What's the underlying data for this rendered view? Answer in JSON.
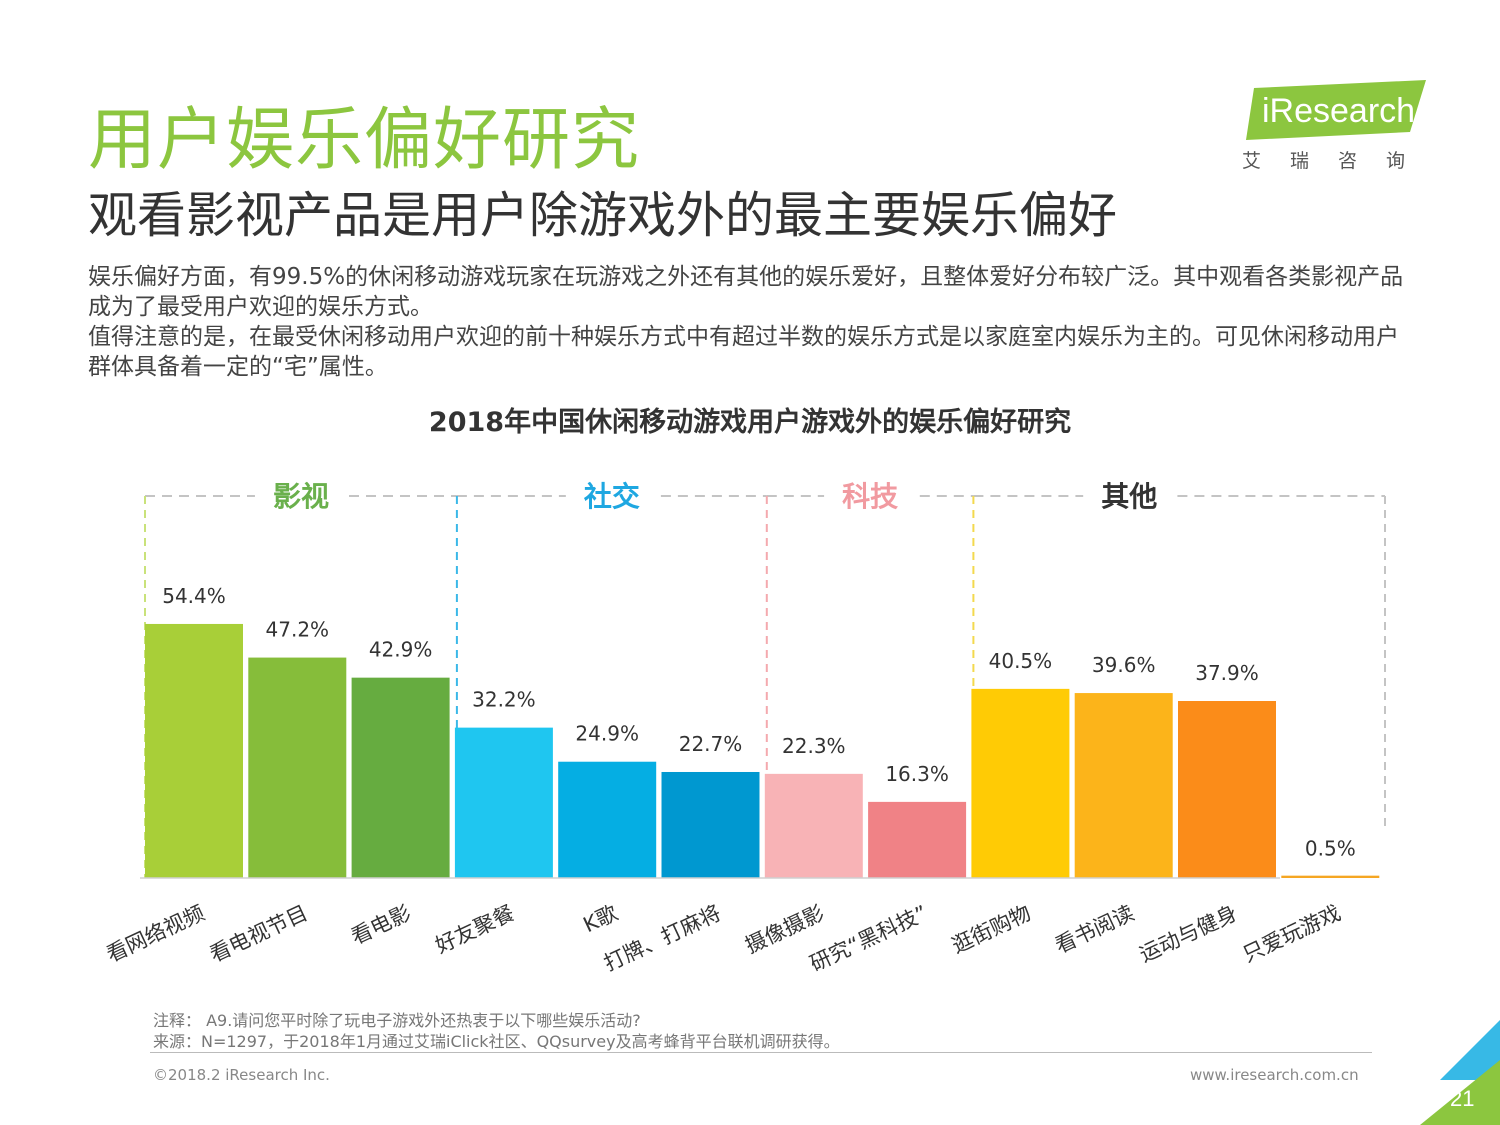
{
  "header": {
    "title": "用户娱乐偏好研究",
    "subtitle": "观看影视产品是用户除游戏外的最主要娱乐偏好"
  },
  "logo": {
    "name": "iResearch",
    "cn": "艾瑞咨询",
    "color": "#8cc63f"
  },
  "body": {
    "p1": "娱乐偏好方面，有99.5%的休闲移动游戏玩家在玩游戏之外还有其他的娱乐爱好，且整体爱好分布较广泛。其中观看各类影视产品成为了最受用户欢迎的娱乐方式。",
    "p2": "值得注意的是，在最受休闲移动用户欢迎的前十种娱乐方式中有超过半数的娱乐方式是以家庭室内娱乐为主的。可见休闲移动用户群体具备着一定的“宅”属性。"
  },
  "chart_data": {
    "type": "bar",
    "title": "2018年中国休闲移动游戏用户游戏外的娱乐偏好研究",
    "ylim": [
      0,
      60
    ],
    "value_suffix": "%",
    "grid": false,
    "groups": [
      {
        "name": "影视",
        "color": "#6ab04c",
        "border": "#c9e27a",
        "start": 0,
        "end": 2
      },
      {
        "name": "社交",
        "color": "#1ea7e1",
        "border": "#3ab8e8",
        "start": 3,
        "end": 5
      },
      {
        "name": "科技",
        "color": "#f19aa0",
        "border": "#f4a9ae",
        "start": 6,
        "end": 7
      },
      {
        "name": "其他",
        "color": "#333333",
        "border": "#f3d94e",
        "start": 8,
        "end": 11
      }
    ],
    "categories": [
      "看网络视频",
      "看电视节目",
      "看电影",
      "好友聚餐",
      "K歌",
      "打牌、打麻将",
      "摄像摄影",
      "研究“黑科技”",
      "逛街购物",
      "看书阅读",
      "运动与健身",
      "只爱玩游戏"
    ],
    "values": [
      54.4,
      47.2,
      42.9,
      32.2,
      24.9,
      22.7,
      22.3,
      16.3,
      40.5,
      39.6,
      37.9,
      0.5
    ],
    "colors": [
      "#a8cf38",
      "#86bd3a",
      "#66ac40",
      "#1fc6f0",
      "#05aee3",
      "#0098d0",
      "#f8b3b6",
      "#f08286",
      "#ffcb05",
      "#fcb41a",
      "#fb8c19",
      "#f5a623"
    ]
  },
  "notes": {
    "note": "注释：  A9.请问您平时除了玩电子游戏外还热衷于以下哪些娱乐活动?",
    "source": "来源：N=1297，于2018年1月通过艾瑞iClick社区、QQsurvey及高考蜂背平台联机调研获得。"
  },
  "footer": {
    "copyright": "©2018.2 iResearch Inc.",
    "website": "www.iresearch.com.cn",
    "page": "21"
  }
}
